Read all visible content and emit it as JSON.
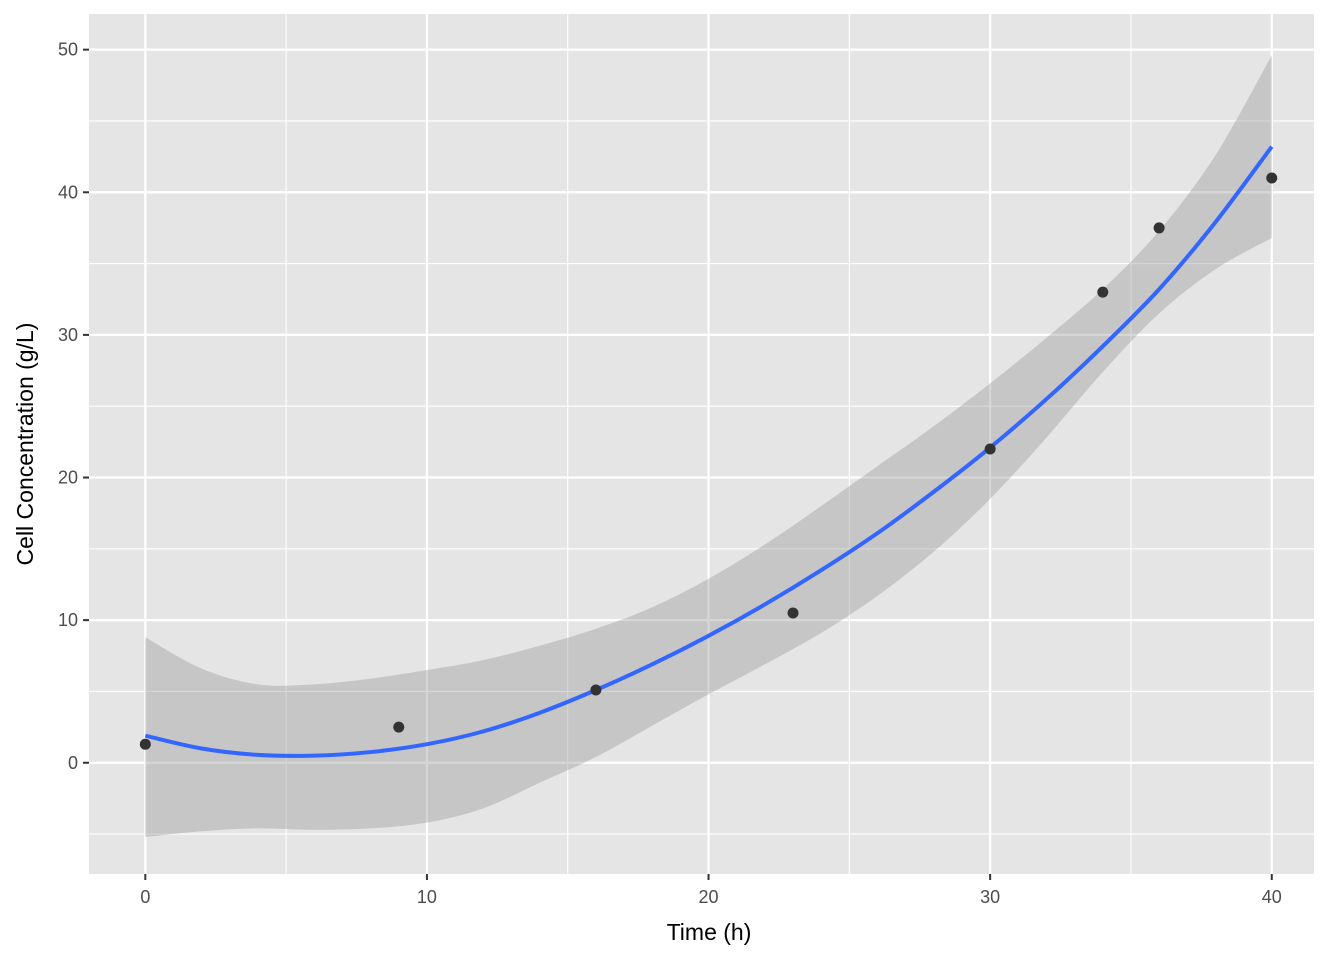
{
  "chart_data": {
    "type": "scatter",
    "xlabel": "Time (h)",
    "ylabel": "Cell Concentration (g/L)",
    "xlim": [
      -2,
      41.5
    ],
    "ylim": [
      -7.8,
      52.5
    ],
    "x_ticks": [
      0,
      10,
      20,
      30,
      40
    ],
    "x_tick_labels": [
      "0",
      "10",
      "20",
      "30",
      "40"
    ],
    "x_minor_ticks": [
      5,
      15,
      25,
      35
    ],
    "y_ticks": [
      0,
      10,
      20,
      30,
      40,
      50
    ],
    "y_tick_labels": [
      "0",
      "10",
      "20",
      "30",
      "40",
      "50"
    ],
    "y_minor_ticks": [
      -5,
      5,
      15,
      25,
      35,
      45
    ],
    "grid": true,
    "points": [
      {
        "x": 0,
        "y": 1.3
      },
      {
        "x": 9,
        "y": 2.5
      },
      {
        "x": 16,
        "y": 5.1
      },
      {
        "x": 23,
        "y": 10.5
      },
      {
        "x": 30,
        "y": 22.0
      },
      {
        "x": 34,
        "y": 33.0
      },
      {
        "x": 36,
        "y": 37.5
      },
      {
        "x": 40,
        "y": 41.0
      }
    ],
    "smooth_fit": {
      "method": "quadratic",
      "x": [
        0,
        2,
        4,
        6,
        8,
        10,
        12,
        14,
        16,
        18,
        20,
        22,
        24,
        26,
        28,
        30,
        32,
        34,
        36,
        38,
        40
      ],
      "y": [
        1.9,
        1.0,
        0.55,
        0.5,
        0.75,
        1.3,
        2.2,
        3.5,
        5.1,
        6.9,
        8.9,
        11.1,
        13.5,
        16.1,
        19.0,
        22.1,
        25.5,
        29.2,
        33.2,
        37.9,
        43.2
      ],
      "ci_lower": [
        -5.2,
        -4.8,
        -4.6,
        -4.7,
        -4.6,
        -4.2,
        -3.2,
        -1.4,
        0.4,
        2.6,
        4.8,
        6.9,
        9.1,
        11.7,
        14.8,
        18.5,
        22.8,
        27.4,
        31.5,
        34.6,
        36.8
      ],
      "ci_upper": [
        8.8,
        6.6,
        5.5,
        5.5,
        5.9,
        6.5,
        7.2,
        8.2,
        9.4,
        10.9,
        12.9,
        15.3,
        18.0,
        20.8,
        23.6,
        26.6,
        29.8,
        33.2,
        37.3,
        42.6,
        49.6
      ],
      "line_color": "#3366FF",
      "band_color": "#999999"
    },
    "point_color": "#333333",
    "panel_background": "#E5E5E5",
    "grid_color": "#FFFFFF"
  }
}
